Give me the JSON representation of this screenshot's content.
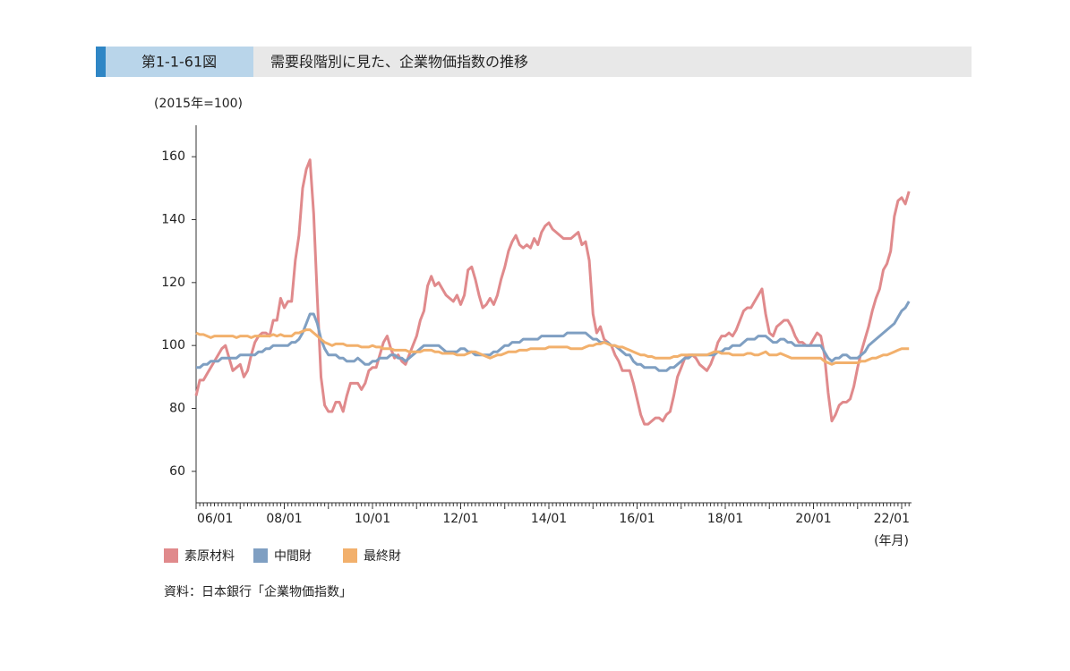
{
  "header": {
    "figure_no": "第1-1-61図",
    "title": "需要段階別に見た、企業物価指数の推移"
  },
  "chart_data": {
    "type": "line",
    "y_label": "(2015年=100)",
    "x_label": "(年月)",
    "x": [
      "06/01",
      "06/02",
      "06/03",
      "06/04",
      "06/05",
      "06/06",
      "06/07",
      "06/08",
      "06/09",
      "06/10",
      "06/11",
      "06/12",
      "07/01",
      "07/02",
      "07/03",
      "07/04",
      "07/05",
      "07/06",
      "07/07",
      "07/08",
      "07/09",
      "07/10",
      "07/11",
      "07/12",
      "08/01",
      "08/02",
      "08/03",
      "08/04",
      "08/05",
      "08/06",
      "08/07",
      "08/08",
      "08/09",
      "08/10",
      "08/11",
      "08/12",
      "09/01",
      "09/02",
      "09/03",
      "09/04",
      "09/05",
      "09/06",
      "09/07",
      "09/08",
      "09/09",
      "09/10",
      "09/11",
      "09/12",
      "10/01",
      "10/02",
      "10/03",
      "10/04",
      "10/05",
      "10/06",
      "10/07",
      "10/08",
      "10/09",
      "10/10",
      "10/11",
      "10/12",
      "11/01",
      "11/02",
      "11/03",
      "11/04",
      "11/05",
      "11/06",
      "11/07",
      "11/08",
      "11/09",
      "11/10",
      "11/11",
      "11/12",
      "12/01",
      "12/02",
      "12/03",
      "12/04",
      "12/05",
      "12/06",
      "12/07",
      "12/08",
      "12/09",
      "12/10",
      "12/11",
      "12/12",
      "13/01",
      "13/02",
      "13/03",
      "13/04",
      "13/05",
      "13/06",
      "13/07",
      "13/08",
      "13/09",
      "13/10",
      "13/11",
      "13/12",
      "14/01",
      "14/02",
      "14/03",
      "14/04",
      "14/05",
      "14/06",
      "14/07",
      "14/08",
      "14/09",
      "14/10",
      "14/11",
      "14/12",
      "15/01",
      "15/02",
      "15/03",
      "15/04",
      "15/05",
      "15/06",
      "15/07",
      "15/08",
      "15/09",
      "15/10",
      "15/11",
      "15/12",
      "16/01",
      "16/02",
      "16/03",
      "16/04",
      "16/05",
      "16/06",
      "16/07",
      "16/08",
      "16/09",
      "16/10",
      "16/11",
      "16/12",
      "17/01",
      "17/02",
      "17/03",
      "17/04",
      "17/05",
      "17/06",
      "17/07",
      "17/08",
      "17/09",
      "17/10",
      "17/11",
      "17/12",
      "18/01",
      "18/02",
      "18/03",
      "18/04",
      "18/05",
      "18/06",
      "18/07",
      "18/08",
      "18/09",
      "18/10",
      "18/11",
      "18/12",
      "19/01",
      "19/02",
      "19/03",
      "19/04",
      "19/05",
      "19/06",
      "19/07",
      "19/08",
      "19/09",
      "19/10",
      "19/11",
      "19/12",
      "20/01",
      "20/02",
      "20/03",
      "20/04",
      "20/05",
      "20/06",
      "20/07",
      "20/08",
      "20/09",
      "20/10",
      "20/11",
      "20/12",
      "21/01",
      "21/02",
      "21/03",
      "21/04",
      "21/05",
      "21/06",
      "21/07",
      "21/08",
      "21/09",
      "21/10",
      "21/11",
      "21/12",
      "22/01",
      "22/02",
      "22/03"
    ],
    "xticks": [
      "06/01",
      "08/01",
      "10/01",
      "12/01",
      "14/01",
      "16/01",
      "18/01",
      "20/01",
      "22/01"
    ],
    "ylim": [
      50,
      170
    ],
    "yticks": [
      60,
      80,
      100,
      120,
      140,
      160
    ],
    "legend": "bottom-left",
    "series": [
      {
        "name": "素原材料",
        "color": "#e08a8c",
        "values": [
          84,
          89,
          89,
          91,
          93,
          95,
          97,
          99,
          100,
          96,
          92,
          93,
          94,
          90,
          92,
          97,
          101,
          103,
          104,
          104,
          103,
          108,
          108,
          115,
          112,
          114,
          114,
          127,
          135,
          150,
          156,
          159,
          142,
          115,
          90,
          81,
          79,
          79,
          82,
          82,
          79,
          84,
          88,
          88,
          88,
          86,
          88,
          92,
          93,
          93,
          97,
          101,
          103,
          99,
          96,
          97,
          95,
          94,
          97,
          100,
          103,
          108,
          111,
          119,
          122,
          119,
          120,
          118,
          116,
          115,
          114,
          116,
          113,
          116,
          124,
          125,
          121,
          116,
          112,
          113,
          115,
          113,
          116,
          121,
          125,
          130,
          133,
          135,
          132,
          131,
          132,
          131,
          134,
          132,
          136,
          138,
          139,
          137,
          136,
          135,
          134,
          134,
          134,
          135,
          136,
          132,
          133,
          127,
          110,
          104,
          106,
          102,
          101,
          100,
          97,
          95,
          92,
          92,
          92,
          88,
          83,
          78,
          75,
          75,
          76,
          77,
          77,
          76,
          78,
          79,
          84,
          90,
          93,
          96,
          97,
          97,
          96,
          94,
          93,
          92,
          94,
          97,
          101,
          103,
          103,
          104,
          103,
          105,
          108,
          111,
          112,
          112,
          114,
          116,
          118,
          110,
          104,
          103,
          106,
          107,
          108,
          108,
          106,
          103,
          101,
          101,
          100,
          100,
          102,
          104,
          103,
          97,
          85,
          76,
          78,
          81,
          82,
          82,
          83,
          87,
          93,
          98,
          102,
          106,
          111,
          115,
          118,
          124,
          126,
          130,
          141,
          146,
          147,
          145,
          149
        ]
      },
      {
        "name": "中間財",
        "color": "#7f9fc2",
        "values": [
          93,
          93,
          94,
          94,
          95,
          95,
          95,
          96,
          96,
          96,
          96,
          96,
          97,
          97,
          97,
          97,
          97,
          98,
          98,
          99,
          99,
          100,
          100,
          100,
          100,
          100,
          101,
          101,
          102,
          104,
          107,
          110,
          110,
          107,
          102,
          99,
          97,
          97,
          97,
          96,
          96,
          95,
          95,
          95,
          96,
          95,
          94,
          94,
          95,
          95,
          96,
          96,
          96,
          97,
          97,
          96,
          96,
          95,
          96,
          97,
          98,
          99,
          100,
          100,
          100,
          100,
          100,
          99,
          98,
          98,
          98,
          98,
          99,
          99,
          98,
          98,
          97,
          97,
          97,
          97,
          97,
          98,
          98,
          99,
          100,
          100,
          101,
          101,
          101,
          102,
          102,
          102,
          102,
          102,
          103,
          103,
          103,
          103,
          103,
          103,
          103,
          104,
          104,
          104,
          104,
          104,
          104,
          103,
          102,
          102,
          101,
          101,
          101,
          100,
          100,
          99,
          98,
          97,
          97,
          95,
          94,
          94,
          93,
          93,
          93,
          93,
          92,
          92,
          92,
          93,
          93,
          94,
          95,
          96,
          96,
          97,
          97,
          97,
          97,
          97,
          97,
          97,
          98,
          98,
          99,
          99,
          100,
          100,
          100,
          101,
          102,
          102,
          102,
          103,
          103,
          103,
          102,
          101,
          101,
          102,
          102,
          101,
          101,
          100,
          100,
          100,
          100,
          100,
          100,
          100,
          100,
          98,
          96,
          95,
          96,
          96,
          97,
          97,
          96,
          96,
          96,
          97,
          98,
          100,
          101,
          102,
          103,
          104,
          105,
          106,
          107,
          109,
          111,
          112,
          114
        ]
      },
      {
        "name": "最終財",
        "color": "#f2b06c",
        "values": [
          104,
          103.5,
          103.5,
          103,
          102.5,
          103,
          103,
          103,
          103,
          103,
          103,
          102.5,
          103,
          103,
          103,
          102.5,
          103,
          103,
          103,
          103,
          103,
          103.5,
          103,
          103.5,
          103,
          103,
          103,
          104,
          104,
          104.5,
          105,
          105,
          104,
          103,
          102,
          101,
          100.5,
          100,
          100.5,
          100.5,
          100.5,
          100,
          100,
          100,
          100,
          99.5,
          99.5,
          99.5,
          100,
          99.5,
          99.5,
          99,
          99,
          99,
          98.5,
          98.5,
          98.5,
          98.5,
          98,
          98,
          98,
          98,
          98.5,
          98.5,
          98.5,
          98,
          98,
          97.5,
          97.5,
          97.5,
          97.5,
          97,
          97,
          97,
          97.5,
          98,
          98,
          97.5,
          97,
          96.5,
          96,
          96.5,
          97,
          97,
          97.5,
          98,
          98,
          98,
          98.5,
          98.5,
          98.5,
          99,
          99,
          99,
          99,
          99,
          99.5,
          99.5,
          99.5,
          99.5,
          99.5,
          99.5,
          99,
          99,
          99,
          99,
          99.5,
          100,
          100,
          100.5,
          100.5,
          101,
          100.5,
          100,
          100,
          99.5,
          99.5,
          99,
          98.5,
          98,
          97.5,
          97,
          97,
          96.5,
          96.5,
          96,
          96,
          96,
          96,
          96,
          96.5,
          96.5,
          97,
          97,
          97,
          97,
          97,
          97,
          97,
          97,
          97.5,
          98,
          98,
          97.5,
          97.5,
          97.5,
          97,
          97,
          97,
          97,
          97.5,
          97.5,
          97,
          97,
          97.5,
          98,
          97,
          97,
          97,
          97.5,
          97,
          96.5,
          96,
          96,
          96,
          96,
          96,
          96,
          96,
          96,
          96,
          95,
          94.5,
          94,
          94.5,
          94.5,
          94.5,
          94.5,
          94.5,
          94.5,
          94.5,
          95,
          95,
          95.5,
          96,
          96,
          96.5,
          97,
          97,
          97.5,
          98,
          98.5,
          99,
          99,
          99
        ]
      }
    ]
  },
  "source": "資料：日本銀行「企業物価指数」"
}
